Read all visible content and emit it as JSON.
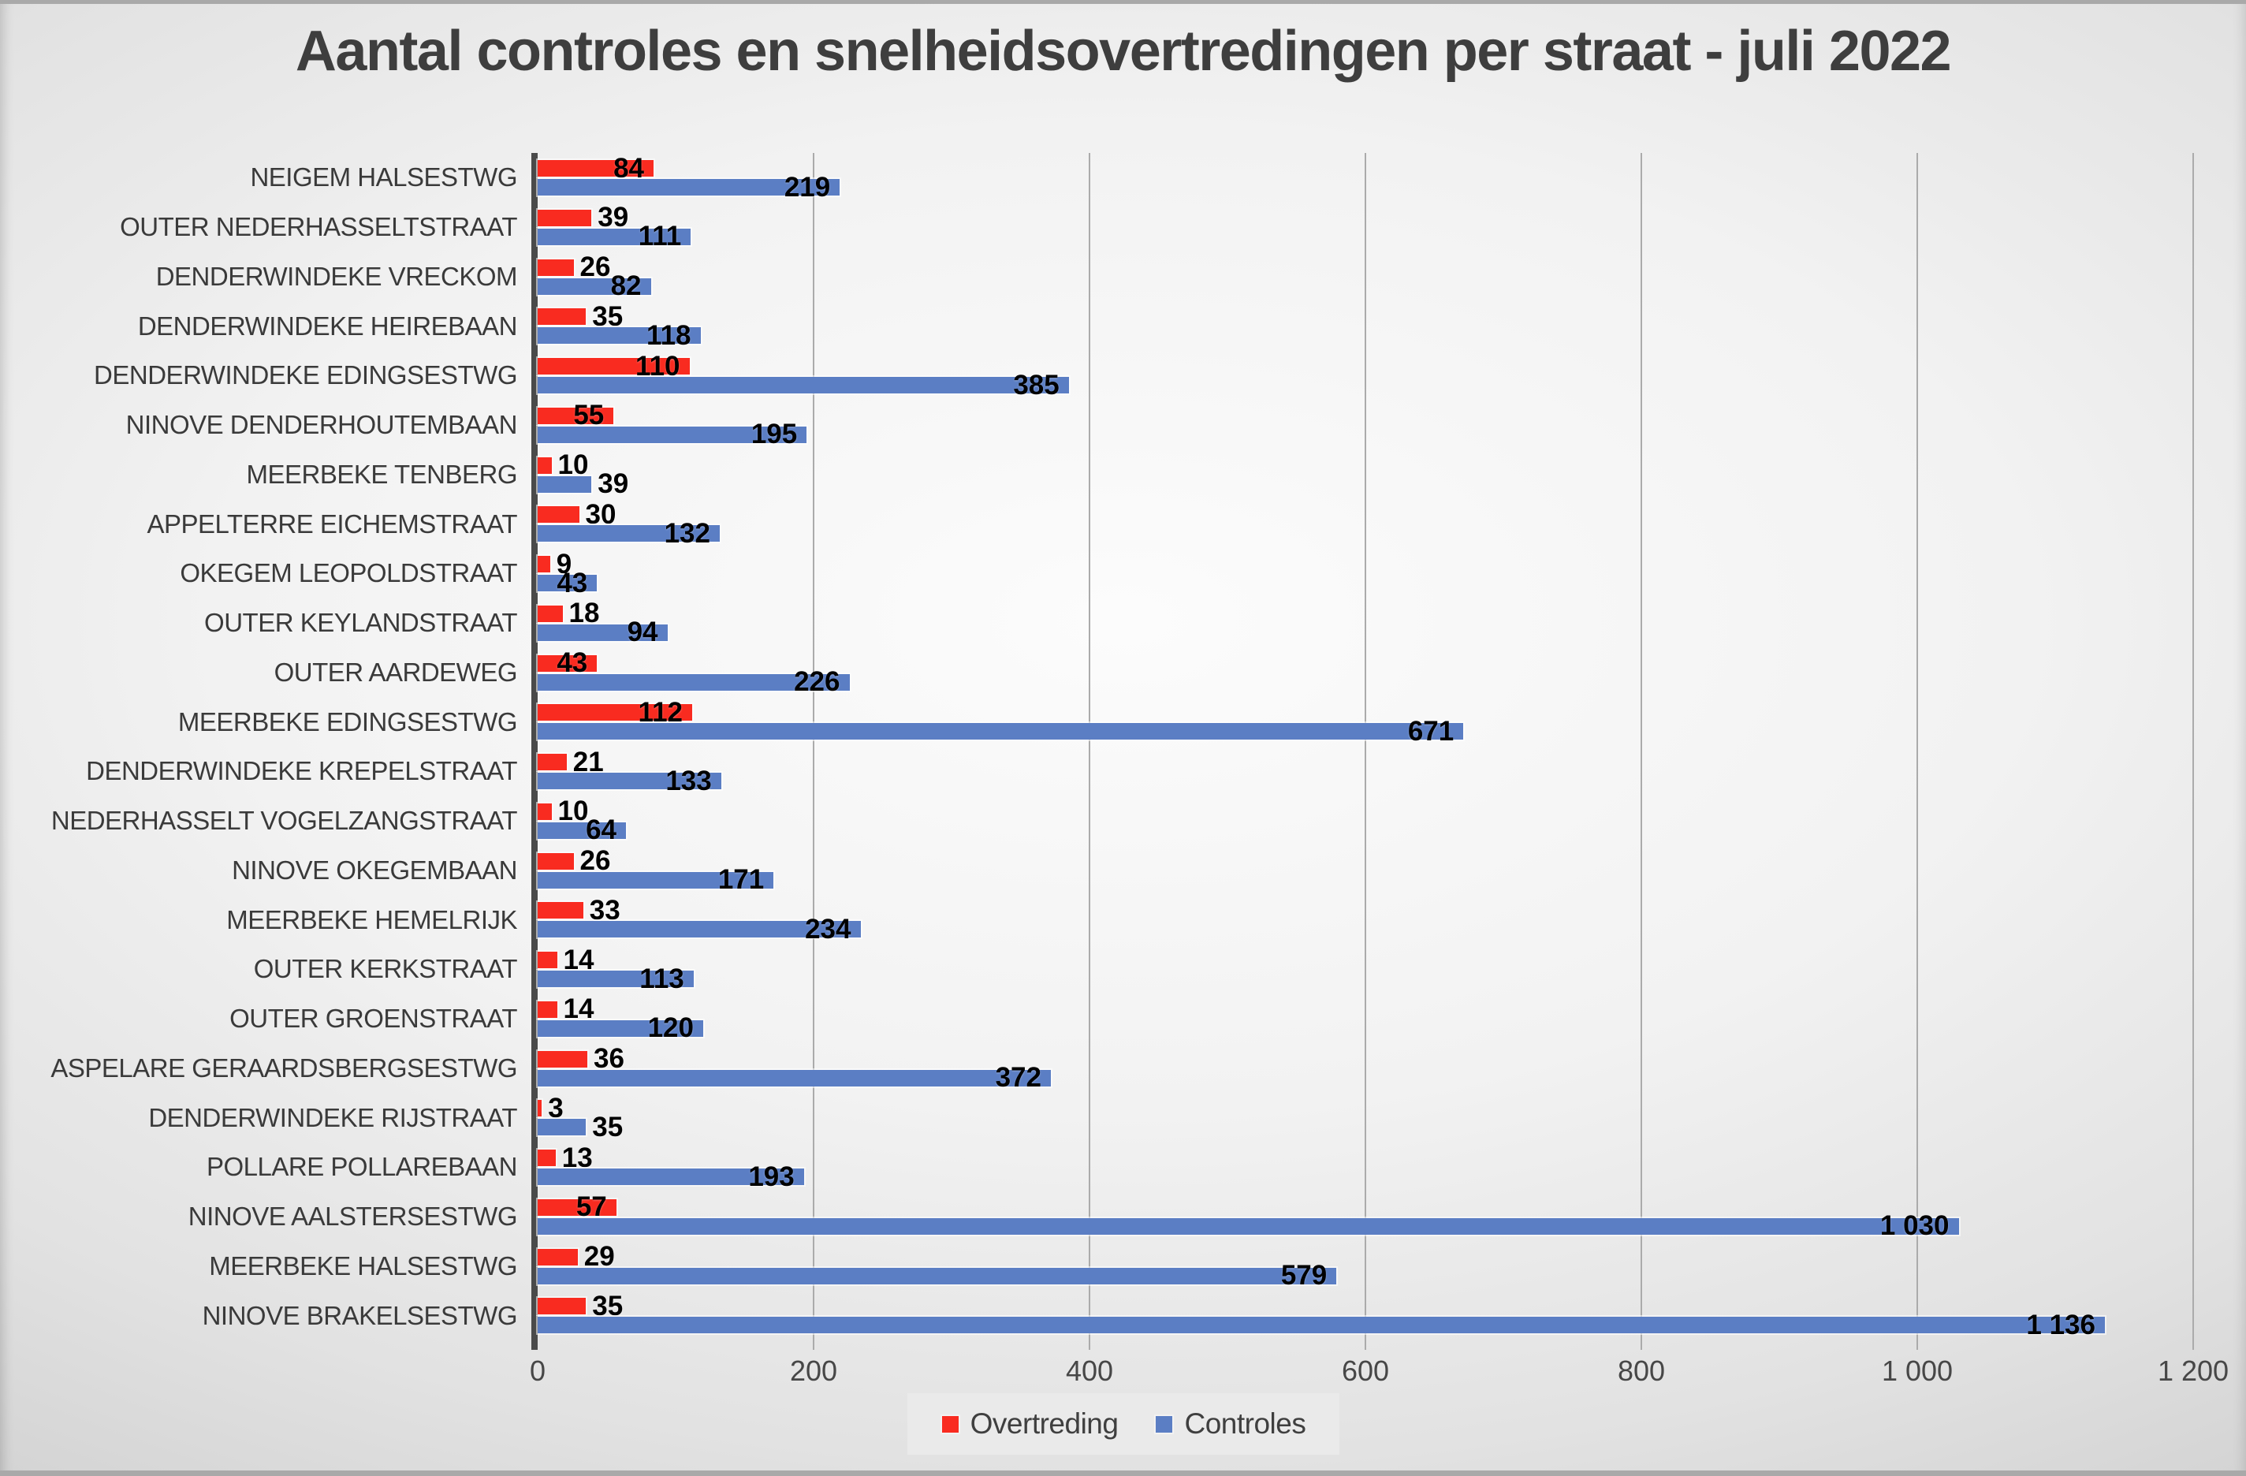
{
  "chart_data": {
    "type": "bar",
    "orientation": "horizontal",
    "title": "Aantal controles en snelheidsovertredingen per straat - juli 2022",
    "categories": [
      "NEIGEM HALSESTWG",
      "OUTER NEDERHASSELTSTRAAT",
      "DENDERWINDEKE VRECKOM",
      "DENDERWINDEKE HEIREBAAN",
      "DENDERWINDEKE EDINGSESTWG",
      "NINOVE DENDERHOUTEMBAAN",
      "MEERBEKE TENBERG",
      "APPELTERRE EICHEMSTRAAT",
      "OKEGEM LEOPOLDSTRAAT",
      "OUTER KEYLANDSTRAAT",
      "OUTER AARDEWEG",
      "MEERBEKE EDINGSESTWG",
      "DENDERWINDEKE KREPELSTRAAT",
      "NEDERHASSELT VOGELZANGSTRAAT",
      "NINOVE OKEGEMBAAN",
      "MEERBEKE HEMELRIJK",
      "OUTER KERKSTRAAT",
      "OUTER GROENSTRAAT",
      "ASPELARE GERAARDSBERGSESTWG",
      "DENDERWINDEKE RIJSTRAAT",
      "POLLARE POLLAREBAAN",
      "NINOVE AALSTERSESTWG",
      "MEERBEKE HALSESTWG",
      "NINOVE BRAKELSESTWG"
    ],
    "series": [
      {
        "name": "Overtreding",
        "color": "#f92b20",
        "values": [
          84,
          39,
          26,
          35,
          110,
          55,
          10,
          30,
          9,
          18,
          43,
          112,
          21,
          10,
          26,
          33,
          14,
          14,
          36,
          3,
          13,
          57,
          29,
          35
        ],
        "labels": [
          "84",
          "39",
          "26",
          "35",
          "110",
          "55",
          "10",
          "30",
          "9",
          "18",
          "43",
          "112",
          "21",
          "10",
          "26",
          "33",
          "14",
          "14",
          "36",
          "3",
          "13",
          "57",
          "29",
          "35"
        ]
      },
      {
        "name": "Controles",
        "color": "#5b7ec4",
        "values": [
          219,
          111,
          82,
          118,
          385,
          195,
          39,
          132,
          43,
          94,
          226,
          671,
          133,
          64,
          171,
          234,
          113,
          120,
          372,
          35,
          193,
          1030,
          579,
          1136
        ],
        "labels": [
          "219",
          "111",
          "82",
          "118",
          "385",
          "195",
          "39",
          "132",
          "43",
          "94",
          "226",
          "671",
          "133",
          "64",
          "171",
          "234",
          "113",
          "120",
          "372",
          "35",
          "193",
          "1 030",
          "579",
          "1 136"
        ]
      }
    ],
    "xlim": [
      0,
      1200
    ],
    "x_tick_values": [
      0,
      200,
      400,
      600,
      800,
      1000,
      1200
    ],
    "x_ticks": [
      "0",
      "200",
      "400",
      "600",
      "800",
      "1 000",
      "1 200"
    ],
    "grid": true,
    "legend_position": "bottom",
    "value_labels_shown": true
  },
  "legend": {
    "items": [
      {
        "label": "Overtreding",
        "color": "#f92b20"
      },
      {
        "label": "Controles",
        "color": "#5b7ec4"
      }
    ]
  },
  "colors": {
    "series_overtreding": "#f92b20",
    "series_controles": "#5b7ec4",
    "title_text": "#3e3e3e",
    "category_label_text": "#3a3a3a",
    "value_label_text": "#000000",
    "axis_tick_text": "#474747",
    "axis_line": "#4a4a4a",
    "gridline": "#ababab",
    "legend_background": "#eaeaea",
    "legend_text": "#3f3f3f"
  }
}
